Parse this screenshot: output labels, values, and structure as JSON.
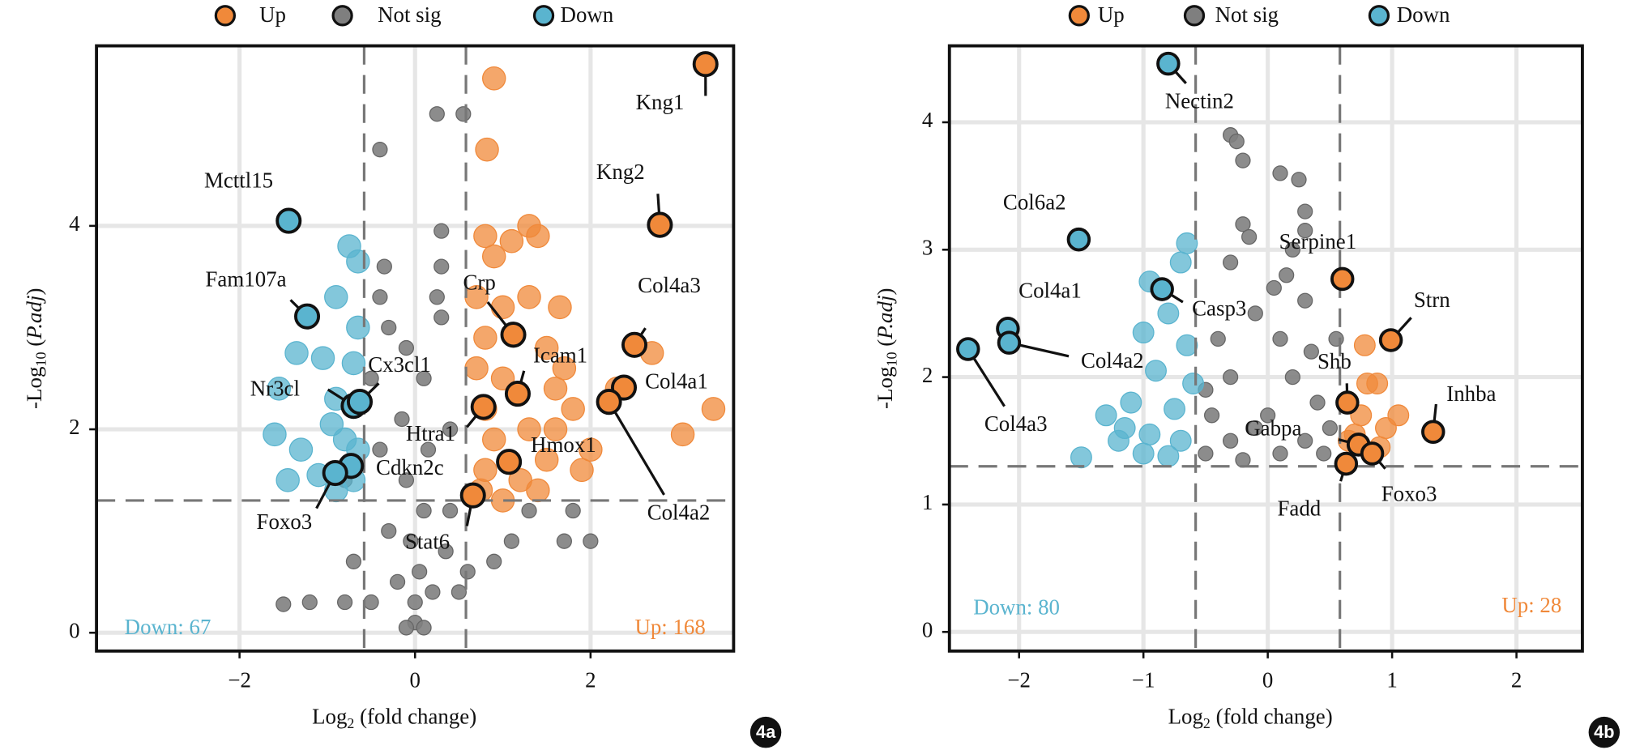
{
  "chart_data": [
    {
      "type": "scatter",
      "tag": "4a",
      "xlabel": [
        "Log",
        "2",
        " (fold change)"
      ],
      "ylabel": [
        "-Log",
        "10",
        " (",
        "P.adj",
        ")"
      ],
      "xlim": [
        -3.63,
        3.63
      ],
      "ylim": [
        -0.18,
        5.77
      ],
      "xticks": [
        {
          "value": -2,
          "label": "−2"
        },
        0,
        2
      ],
      "yticks": [
        0,
        2,
        4
      ],
      "grid": true,
      "x_thresholds": [
        -0.58,
        0.58
      ],
      "y_threshold": 1.3,
      "series": [
        {
          "name": "Up",
          "color": "#f0893a",
          "x": [
            0.9,
            0.82,
            0.8,
            1.3,
            1.4,
            1.1,
            0.9,
            1.0,
            0.7,
            1.3,
            1.65,
            0.8,
            1.5,
            0.7,
            1.0,
            1.7,
            1.6,
            1.8,
            0.8,
            1.3,
            1.6,
            0.9,
            2.0,
            1.5,
            0.8,
            1.2,
            1.9,
            0.75,
            1.0,
            1.4,
            2.7,
            3.05,
            3.4,
            2.3
          ],
          "y": [
            5.45,
            4.75,
            3.9,
            4.0,
            3.9,
            3.85,
            3.7,
            3.2,
            3.3,
            3.3,
            3.2,
            2.9,
            2.8,
            2.6,
            2.5,
            2.6,
            2.4,
            2.2,
            2.2,
            2.0,
            2.0,
            1.9,
            1.8,
            1.7,
            1.6,
            1.5,
            1.6,
            1.4,
            1.3,
            1.4,
            2.75,
            1.95,
            2.2,
            2.4
          ]
        },
        {
          "name": "Not sig",
          "color": "#7f7f7f",
          "x": [
            0,
            0,
            0.05,
            -0.05,
            0.1,
            -0.1,
            0.15,
            -0.15,
            0.1,
            -0.1,
            0.3,
            -0.4,
            0.3,
            -0.35,
            -0.4,
            0.3,
            0.25,
            0.55,
            0.2,
            -0.2,
            -0.3,
            0.35,
            -0.5,
            0.5,
            -0.8,
            -1.2,
            -1.5,
            0.9,
            1.1,
            1.7,
            2.0,
            1.3,
            1.8,
            -0.7,
            -0.8,
            -0.5,
            0.4,
            0.6,
            0.4,
            -0.4,
            -0.1,
            0.1,
            0.25,
            -0.3
          ],
          "y": [
            0.1,
            0.3,
            0.6,
            0.9,
            1.2,
            1.5,
            1.8,
            2.1,
            2.5,
            2.8,
            3.1,
            3.3,
            3.6,
            3.6,
            4.75,
            3.95,
            5.1,
            5.1,
            0.4,
            0.5,
            1.0,
            0.8,
            0.3,
            0.4,
            0.3,
            0.3,
            0.28,
            0.7,
            0.9,
            0.9,
            0.9,
            1.2,
            1.2,
            0.7,
            1.5,
            2.5,
            2.0,
            0.6,
            1.2,
            1.8,
            0.05,
            0.05,
            3.3,
            3.0
          ]
        },
        {
          "name": "Down",
          "color": "#5ab4cf",
          "x": [
            -0.75,
            -0.65,
            -0.9,
            -0.65,
            -1.35,
            -1.05,
            -0.7,
            -1.55,
            -0.9,
            -1.6,
            -0.95,
            -1.3,
            -0.8,
            -1.45,
            -1.1,
            -0.7,
            -0.9,
            -0.65
          ],
          "y": [
            3.8,
            3.65,
            3.3,
            3.0,
            2.75,
            2.7,
            2.65,
            2.4,
            2.3,
            1.95,
            2.05,
            1.8,
            1.9,
            1.5,
            1.55,
            1.5,
            1.4,
            1.8
          ]
        }
      ],
      "highlights": [
        {
          "label": "Kng1",
          "x": 3.31,
          "y": 5.59,
          "color": "#f0893a"
        },
        {
          "label": "Kng2",
          "x": 2.79,
          "y": 4.01,
          "color": "#f0893a"
        },
        {
          "label": "Col4a3",
          "x": 2.5,
          "y": 2.83,
          "color": "#f0893a"
        },
        {
          "label": "Col4a1",
          "x": 2.38,
          "y": 2.41,
          "color": "#f0893a"
        },
        {
          "label": "Col4a2",
          "x": 2.21,
          "y": 2.27,
          "color": "#f0893a"
        },
        {
          "label": "Crp",
          "x": 1.12,
          "y": 2.93,
          "color": "#f0893a"
        },
        {
          "label": "Icam1",
          "x": 1.17,
          "y": 2.35,
          "color": "#f0893a"
        },
        {
          "label": "Htra1",
          "x": 0.78,
          "y": 2.22,
          "color": "#f0893a"
        },
        {
          "label": "Hmox1",
          "x": 1.07,
          "y": 1.68,
          "color": "#f0893a"
        },
        {
          "label": "Stat6",
          "x": 0.66,
          "y": 1.35,
          "color": "#f0893a"
        },
        {
          "label": "Mcttl15",
          "x": -1.44,
          "y": 4.05,
          "color": "#5ab4cf"
        },
        {
          "label": "Fam107a",
          "x": -1.23,
          "y": 3.11,
          "color": "#5ab4cf"
        },
        {
          "label": "Nr3cl",
          "x": -0.7,
          "y": 2.23,
          "color": "#5ab4cf"
        },
        {
          "label": "Cx3cl1",
          "x": -0.63,
          "y": 2.27,
          "color": "#5ab4cf"
        },
        {
          "label": "Cdkn2c",
          "x": -0.73,
          "y": 1.64,
          "color": "#5ab4cf"
        },
        {
          "label": "Foxo3",
          "x": -0.91,
          "y": 1.57,
          "color": "#5ab4cf"
        }
      ],
      "annotations": [
        {
          "text": "Down: 67",
          "color": "#5ab4cf"
        },
        {
          "text": "Up: 168",
          "color": "#f0893a"
        }
      ]
    },
    {
      "type": "scatter",
      "tag": "4b",
      "xlabel": [
        "Log",
        "2",
        " (fold change)"
      ],
      "ylabel": [
        "-Log",
        "10",
        " (",
        "P.adj",
        ")"
      ],
      "xlim": [
        -2.56,
        2.53
      ],
      "ylim": [
        -0.15,
        4.6
      ],
      "xticks": [
        {
          "value": -2,
          "label": "−2"
        },
        {
          "value": -1,
          "label": "−1"
        },
        0,
        1,
        2
      ],
      "yticks": [
        0,
        1,
        2,
        3,
        4
      ],
      "grid": true,
      "x_thresholds": [
        -0.58,
        0.58
      ],
      "y_threshold": 1.3,
      "series": [
        {
          "name": "Up",
          "color": "#f0893a",
          "x": [
            0.78,
            0.8,
            0.88,
            0.75,
            0.95,
            1.05,
            0.7,
            0.9,
            0.65
          ],
          "y": [
            2.25,
            1.95,
            1.95,
            1.7,
            1.6,
            1.7,
            1.55,
            1.45,
            1.5
          ]
        },
        {
          "name": "Not sig",
          "color": "#7f7f7f",
          "x": [
            -0.3,
            -0.25,
            -0.2,
            0.25,
            0.1,
            0.3,
            -0.2,
            -0.15,
            0.2,
            -0.3,
            0.05,
            -0.1,
            0.3,
            -0.4,
            0.1,
            -0.3,
            0.2,
            -0.45,
            0.0,
            0.4,
            -0.3,
            0.3,
            0.5,
            -0.5,
            0.1,
            -0.2,
            0.45,
            0.35,
            0.15,
            0.3,
            -0.5,
            -0.1,
            0.55
          ],
          "y": [
            3.9,
            3.85,
            3.7,
            3.55,
            3.6,
            3.3,
            3.2,
            3.1,
            3.0,
            2.9,
            2.7,
            2.5,
            2.6,
            2.3,
            2.3,
            2.0,
            2.0,
            1.7,
            1.7,
            1.8,
            1.5,
            1.5,
            1.6,
            1.4,
            1.4,
            1.35,
            1.4,
            2.2,
            2.8,
            3.15,
            1.9,
            1.6,
            2.3
          ]
        },
        {
          "name": "Down",
          "color": "#5ab4cf",
          "x": [
            -0.65,
            -0.7,
            -0.95,
            -0.8,
            -0.65,
            -1.0,
            -0.9,
            -0.6,
            -1.1,
            -0.75,
            -1.3,
            -1.15,
            -0.95,
            -0.7,
            -1.0,
            -0.8,
            -1.5,
            -1.2
          ],
          "y": [
            3.05,
            2.9,
            2.75,
            2.5,
            2.25,
            2.35,
            2.05,
            1.95,
            1.8,
            1.75,
            1.7,
            1.6,
            1.55,
            1.5,
            1.4,
            1.38,
            1.37,
            1.5
          ]
        }
      ],
      "highlights": [
        {
          "label": "Nectin2",
          "x": -0.8,
          "y": 4.46,
          "color": "#5ab4cf"
        },
        {
          "label": "Col6a2",
          "x": -1.52,
          "y": 3.08,
          "color": "#5ab4cf"
        },
        {
          "label": "Col4a1",
          "x": -2.09,
          "y": 2.38,
          "color": "#5ab4cf"
        },
        {
          "label": "Col4a2",
          "x": -2.08,
          "y": 2.27,
          "color": "#5ab4cf"
        },
        {
          "label": "Col4a3",
          "x": -2.41,
          "y": 2.22,
          "color": "#5ab4cf"
        },
        {
          "label": "Casp3",
          "x": -0.85,
          "y": 2.69,
          "color": "#5ab4cf"
        },
        {
          "label": "Serpine1",
          "x": 0.6,
          "y": 2.77,
          "color": "#f0893a"
        },
        {
          "label": "Strn",
          "x": 0.99,
          "y": 2.29,
          "color": "#f0893a"
        },
        {
          "label": "Shb",
          "x": 0.64,
          "y": 1.8,
          "color": "#f0893a"
        },
        {
          "label": "Inhba",
          "x": 1.33,
          "y": 1.57,
          "color": "#f0893a"
        },
        {
          "label": "Gabpa",
          "x": 0.73,
          "y": 1.47,
          "color": "#f0893a"
        },
        {
          "label": "Fadd",
          "x": 0.63,
          "y": 1.32,
          "color": "#f0893a"
        },
        {
          "label": "Foxo3",
          "x": 0.84,
          "y": 1.4,
          "color": "#f0893a"
        }
      ],
      "annotations": [
        {
          "text": "Down: 80",
          "color": "#5ab4cf"
        },
        {
          "text": "Up: 28",
          "color": "#f0893a"
        }
      ]
    }
  ]
}
